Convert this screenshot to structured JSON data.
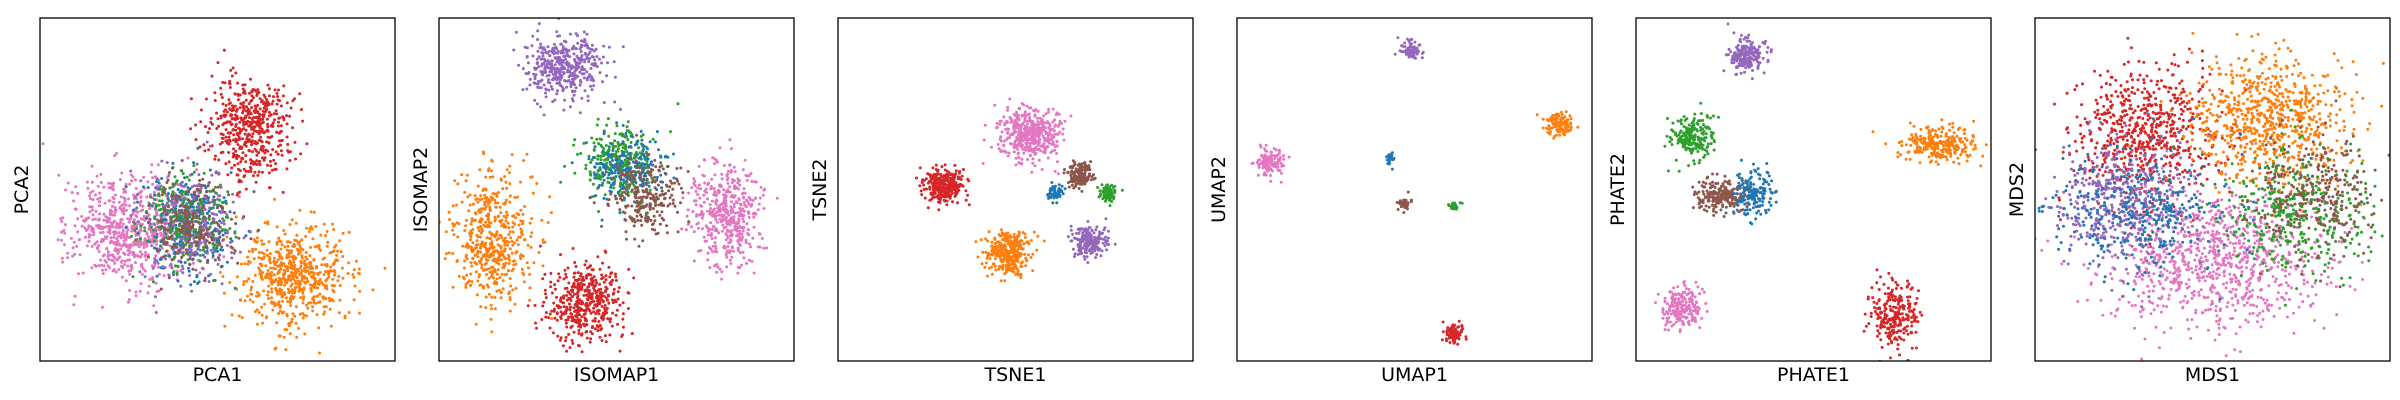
{
  "figure": {
    "colors": {
      "blue": "#1f77b4",
      "orange": "#ff7f0e",
      "green": "#2ca02c",
      "red": "#d62728",
      "purple": "#9467bd",
      "brown": "#8c564b",
      "pink": "#e377c2"
    }
  },
  "chart_data": [
    {
      "type": "scatter",
      "xlabel": "PCA1",
      "ylabel": "PCA2",
      "xlim": [
        0,
        10
      ],
      "ylim": [
        0,
        10
      ],
      "grid": false,
      "ticks": false,
      "clusters": [
        {
          "color": "pink",
          "center": [
            2.6,
            3.8
          ],
          "spread": [
            0.85,
            0.8
          ],
          "count": 700
        },
        {
          "color": "orange",
          "center": [
            7.2,
            2.5
          ],
          "spread": [
            0.75,
            0.75
          ],
          "count": 600
        },
        {
          "color": "red",
          "center": [
            5.9,
            6.8
          ],
          "spread": [
            0.6,
            0.72
          ],
          "count": 500
        },
        {
          "color": "blue",
          "center": [
            4.2,
            4.0
          ],
          "spread": [
            0.6,
            0.75
          ],
          "count": 300
        },
        {
          "color": "purple",
          "center": [
            4.3,
            3.9
          ],
          "spread": [
            0.65,
            0.8
          ],
          "count": 300
        },
        {
          "color": "green",
          "center": [
            4.1,
            4.1
          ],
          "spread": [
            0.6,
            0.7
          ],
          "count": 200
        },
        {
          "color": "brown",
          "center": [
            4.2,
            4.0
          ],
          "spread": [
            0.6,
            0.7
          ],
          "count": 200
        }
      ]
    },
    {
      "type": "scatter",
      "xlabel": "ISOMAP1",
      "ylabel": "ISOMAP2",
      "xlim": [
        0,
        10
      ],
      "ylim": [
        0,
        10
      ],
      "grid": false,
      "ticks": false,
      "clusters": [
        {
          "color": "purple",
          "center": [
            3.5,
            8.6
          ],
          "spread": [
            0.6,
            0.45
          ],
          "count": 400
        },
        {
          "color": "pink",
          "center": [
            8.1,
            4.3
          ],
          "spread": [
            0.5,
            0.75
          ],
          "count": 450
        },
        {
          "color": "orange",
          "center": [
            1.5,
            3.6
          ],
          "spread": [
            0.55,
            1.0
          ],
          "count": 500
        },
        {
          "color": "red",
          "center": [
            4.1,
            1.7
          ],
          "spread": [
            0.55,
            0.55
          ],
          "count": 450
        },
        {
          "color": "green",
          "center": [
            5.1,
            5.8
          ],
          "spread": [
            0.5,
            0.55
          ],
          "count": 300
        },
        {
          "color": "blue",
          "center": [
            5.4,
            5.6
          ],
          "spread": [
            0.5,
            0.5
          ],
          "count": 200
        },
        {
          "color": "brown",
          "center": [
            5.8,
            4.8
          ],
          "spread": [
            0.5,
            0.55
          ],
          "count": 250
        }
      ]
    },
    {
      "type": "scatter",
      "xlabel": "TSNE1",
      "ylabel": "TSNE2",
      "xlim": [
        0,
        10
      ],
      "ylim": [
        0,
        10
      ],
      "grid": false,
      "ticks": false,
      "clusters": [
        {
          "color": "pink",
          "center": [
            5.4,
            6.6
          ],
          "spread": [
            0.42,
            0.38
          ],
          "count": 450
        },
        {
          "color": "red",
          "center": [
            3.0,
            5.1
          ],
          "spread": [
            0.28,
            0.25
          ],
          "count": 300
        },
        {
          "color": "orange",
          "center": [
            4.8,
            3.2
          ],
          "spread": [
            0.32,
            0.32
          ],
          "count": 350
        },
        {
          "color": "brown",
          "center": [
            6.8,
            5.4
          ],
          "spread": [
            0.18,
            0.17
          ],
          "count": 150
        },
        {
          "color": "purple",
          "center": [
            7.1,
            3.5
          ],
          "spread": [
            0.24,
            0.22
          ],
          "count": 200
        },
        {
          "color": "blue",
          "center": [
            6.1,
            4.9
          ],
          "spread": [
            0.12,
            0.12
          ],
          "count": 60
        },
        {
          "color": "green",
          "center": [
            7.6,
            4.9
          ],
          "spread": [
            0.12,
            0.12
          ],
          "count": 80
        }
      ]
    },
    {
      "type": "scatter",
      "xlabel": "UMAP1",
      "ylabel": "UMAP2",
      "xlim": [
        0,
        10
      ],
      "ylim": [
        0,
        10
      ],
      "grid": false,
      "ticks": false,
      "clusters": [
        {
          "color": "purple",
          "center": [
            4.9,
            9.1
          ],
          "spread": [
            0.14,
            0.14
          ],
          "count": 80
        },
        {
          "color": "orange",
          "center": [
            9.1,
            6.9
          ],
          "spread": [
            0.18,
            0.18
          ],
          "count": 120
        },
        {
          "color": "pink",
          "center": [
            0.9,
            5.8
          ],
          "spread": [
            0.2,
            0.2
          ],
          "count": 120
        },
        {
          "color": "blue",
          "center": [
            4.3,
            5.9
          ],
          "spread": [
            0.05,
            0.08
          ],
          "count": 25
        },
        {
          "color": "brown",
          "center": [
            4.7,
            4.6
          ],
          "spread": [
            0.1,
            0.1
          ],
          "count": 40
        },
        {
          "color": "green",
          "center": [
            6.1,
            4.5
          ],
          "spread": [
            0.08,
            0.06
          ],
          "count": 30
        },
        {
          "color": "red",
          "center": [
            6.1,
            0.8
          ],
          "spread": [
            0.14,
            0.14
          ],
          "count": 90
        }
      ]
    },
    {
      "type": "scatter",
      "xlabel": "PHATE1",
      "ylabel": "PHATE2",
      "xlim": [
        0,
        10
      ],
      "ylim": [
        0,
        10
      ],
      "grid": false,
      "ticks": false,
      "clusters": [
        {
          "color": "purple",
          "center": [
            3.1,
            8.9
          ],
          "spread": [
            0.28,
            0.24
          ],
          "count": 200
        },
        {
          "color": "green",
          "center": [
            1.6,
            6.5
          ],
          "spread": [
            0.3,
            0.32
          ],
          "count": 200
        },
        {
          "color": "brown",
          "center": [
            2.4,
            4.8
          ],
          "spread": [
            0.32,
            0.25
          ],
          "count": 220
        },
        {
          "color": "blue",
          "center": [
            3.3,
            4.9
          ],
          "spread": [
            0.28,
            0.35
          ],
          "count": 160
        },
        {
          "color": "orange",
          "center": [
            8.6,
            6.3
          ],
          "spread": [
            0.55,
            0.25
          ],
          "count": 260
        },
        {
          "color": "red",
          "center": [
            7.3,
            1.3
          ],
          "spread": [
            0.35,
            0.45
          ],
          "count": 260
        },
        {
          "color": "pink",
          "center": [
            1.3,
            1.6
          ],
          "spread": [
            0.28,
            0.3
          ],
          "count": 200
        }
      ]
    },
    {
      "type": "scatter",
      "xlabel": "MDS1",
      "ylabel": "MDS2",
      "xlim": [
        0,
        10
      ],
      "ylim": [
        0,
        10
      ],
      "grid": false,
      "ticks": false,
      "clusters": [
        {
          "color": "red",
          "center": [
            3.1,
            6.6
          ],
          "spread": [
            1.0,
            1.0
          ],
          "count": 650
        },
        {
          "color": "orange",
          "center": [
            6.6,
            7.0
          ],
          "spread": [
            1.1,
            1.0
          ],
          "count": 750
        },
        {
          "color": "pink",
          "center": [
            5.1,
            2.9
          ],
          "spread": [
            1.5,
            1.0
          ],
          "count": 900
        },
        {
          "color": "purple",
          "center": [
            2.3,
            4.6
          ],
          "spread": [
            0.9,
            0.9
          ],
          "count": 450
        },
        {
          "color": "blue",
          "center": [
            3.0,
            4.3
          ],
          "spread": [
            1.3,
            0.9
          ],
          "count": 350
        },
        {
          "color": "green",
          "center": [
            7.4,
            4.3
          ],
          "spread": [
            1.0,
            0.9
          ],
          "count": 400
        },
        {
          "color": "brown",
          "center": [
            7.9,
            4.9
          ],
          "spread": [
            0.9,
            0.9
          ],
          "count": 300
        }
      ]
    }
  ]
}
